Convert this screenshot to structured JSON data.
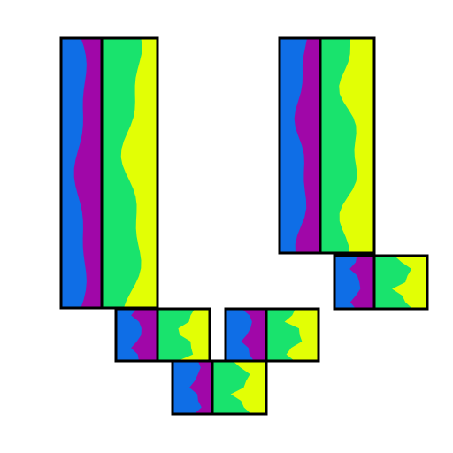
{
  "palette": {
    "background": "#ffffff",
    "outline": "#000000",
    "blue": "#0f6ee6",
    "purple": "#a007a8",
    "green": "#19e36d",
    "yellow": "#e2ff05"
  },
  "tiles": [
    {
      "name": "tall-tile-left",
      "ratios": [
        0.2,
        0.21,
        0.59
      ]
    },
    {
      "name": "tall-tile-right",
      "ratios": [
        0.24,
        0.21,
        0.55
      ]
    },
    {
      "name": "small-tile-right-middle",
      "ratios": [
        0.22,
        0.18,
        0.6
      ]
    },
    {
      "name": "small-tile-bottom-left",
      "ratios": [
        0.22,
        0.2,
        0.58
      ]
    },
    {
      "name": "small-tile-bottom-mid",
      "ratios": [
        0.24,
        0.2,
        0.56
      ]
    },
    {
      "name": "small-tile-lowest",
      "ratios": [
        0.26,
        0.18,
        0.56
      ]
    }
  ]
}
